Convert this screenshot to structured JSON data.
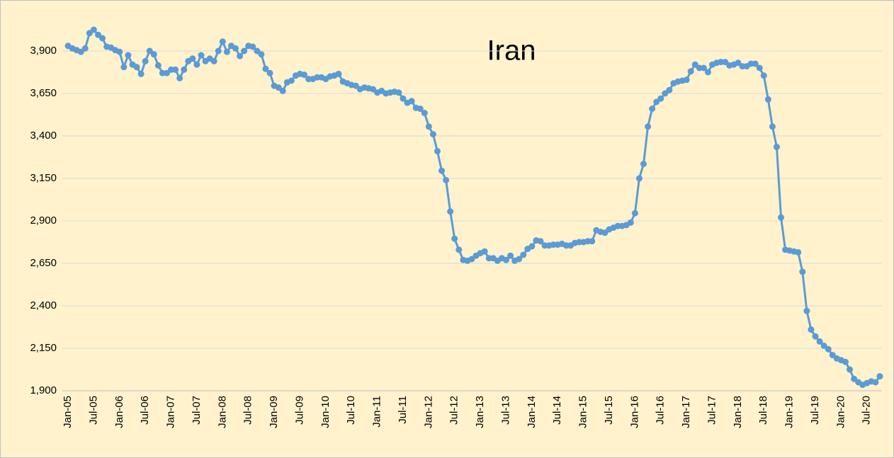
{
  "chart_data": {
    "type": "line",
    "title": "Iran",
    "categories": [
      "Jan-05",
      null,
      null,
      null,
      null,
      null,
      "Jul-05",
      null,
      null,
      null,
      null,
      null,
      "Jan-06",
      null,
      null,
      null,
      null,
      null,
      "Jul-06",
      null,
      null,
      null,
      null,
      null,
      "Jan-07",
      null,
      null,
      null,
      null,
      null,
      "Jul-07",
      null,
      null,
      null,
      null,
      null,
      "Jan-08",
      null,
      null,
      null,
      null,
      null,
      "Jul-08",
      null,
      null,
      null,
      null,
      null,
      "Jan-09",
      null,
      null,
      null,
      null,
      null,
      "Jul-09",
      null,
      null,
      null,
      null,
      null,
      "Jan-10",
      null,
      null,
      null,
      null,
      null,
      "Jul-10",
      null,
      null,
      null,
      null,
      null,
      "Jan-11",
      null,
      null,
      null,
      null,
      null,
      "Jul-11",
      null,
      null,
      null,
      null,
      null,
      "Jan-12",
      null,
      null,
      null,
      null,
      null,
      "Jul-12",
      null,
      null,
      null,
      null,
      null,
      "Jan-13",
      null,
      null,
      null,
      null,
      null,
      "Jul-13",
      null,
      null,
      null,
      null,
      null,
      "Jan-14",
      null,
      null,
      null,
      null,
      null,
      "Jul-14",
      null,
      null,
      null,
      null,
      null,
      "Jan-15",
      null,
      null,
      null,
      null,
      null,
      "Jul-15",
      null,
      null,
      null,
      null,
      null,
      "Jan-16",
      null,
      null,
      null,
      null,
      null,
      "Jul-16",
      null,
      null,
      null,
      null,
      null,
      "Jan-17",
      null,
      null,
      null,
      null,
      null,
      "Jul-17",
      null,
      null,
      null,
      null,
      null,
      "Jan-18",
      null,
      null,
      null,
      null,
      null,
      "Jul-18",
      null,
      null,
      null,
      null,
      null,
      "Jan-19",
      null,
      null,
      null,
      null,
      null,
      "Jul-19",
      null,
      null,
      null,
      null,
      null,
      "Jan-20",
      null,
      null,
      null,
      null,
      null,
      "Jul-20",
      null,
      null,
      null
    ],
    "values": [
      3930,
      3915,
      3905,
      3895,
      3915,
      4005,
      4025,
      3995,
      3975,
      3925,
      3920,
      3905,
      3895,
      3805,
      3875,
      3820,
      3805,
      3765,
      3840,
      3900,
      3880,
      3815,
      3770,
      3770,
      3790,
      3790,
      3740,
      3790,
      3840,
      3855,
      3820,
      3875,
      3840,
      3855,
      3840,
      3900,
      3955,
      3895,
      3930,
      3915,
      3870,
      3900,
      3930,
      3925,
      3900,
      3880,
      3795,
      3770,
      3695,
      3685,
      3665,
      3715,
      3725,
      3755,
      3765,
      3760,
      3735,
      3735,
      3745,
      3745,
      3735,
      3750,
      3755,
      3765,
      3720,
      3710,
      3700,
      3695,
      3675,
      3685,
      3680,
      3675,
      3655,
      3665,
      3650,
      3655,
      3660,
      3655,
      3620,
      3595,
      3605,
      3565,
      3560,
      3535,
      3455,
      3410,
      3310,
      3195,
      3140,
      2955,
      2795,
      2730,
      2670,
      2665,
      2675,
      2695,
      2710,
      2720,
      2680,
      2680,
      2665,
      2680,
      2670,
      2695,
      2665,
      2675,
      2700,
      2735,
      2750,
      2785,
      2780,
      2755,
      2755,
      2760,
      2760,
      2765,
      2755,
      2755,
      2770,
      2775,
      2775,
      2780,
      2780,
      2845,
      2835,
      2830,
      2850,
      2860,
      2870,
      2870,
      2875,
      2890,
      2945,
      3150,
      3235,
      3455,
      3560,
      3600,
      3620,
      3650,
      3670,
      3710,
      3720,
      3725,
      3730,
      3780,
      3820,
      3800,
      3800,
      3775,
      3820,
      3830,
      3835,
      3835,
      3815,
      3820,
      3830,
      3810,
      3810,
      3825,
      3825,
      3800,
      3755,
      3615,
      3455,
      3335,
      2920,
      2730,
      2725,
      2720,
      2715,
      2600,
      2370,
      2260,
      2220,
      2190,
      2165,
      2145,
      2110,
      2090,
      2080,
      2070,
      2025,
      1970,
      1950,
      1935,
      1945,
      1955,
      1950,
      1985
    ],
    "color": "#5b9bd5",
    "ylim": [
      1900,
      4150
    ],
    "yticks": [
      {
        "value": 1900,
        "label": "1,900"
      },
      {
        "value": 2150,
        "label": "2,150"
      },
      {
        "value": 2400,
        "label": "2,400"
      },
      {
        "value": 2650,
        "label": "2,650"
      },
      {
        "value": 2900,
        "label": "2,900"
      },
      {
        "value": 3150,
        "label": "3,150"
      },
      {
        "value": 3400,
        "label": "3,400"
      },
      {
        "value": 3650,
        "label": "3,650"
      },
      {
        "value": 3900,
        "label": "3,900"
      }
    ],
    "grid": true
  }
}
